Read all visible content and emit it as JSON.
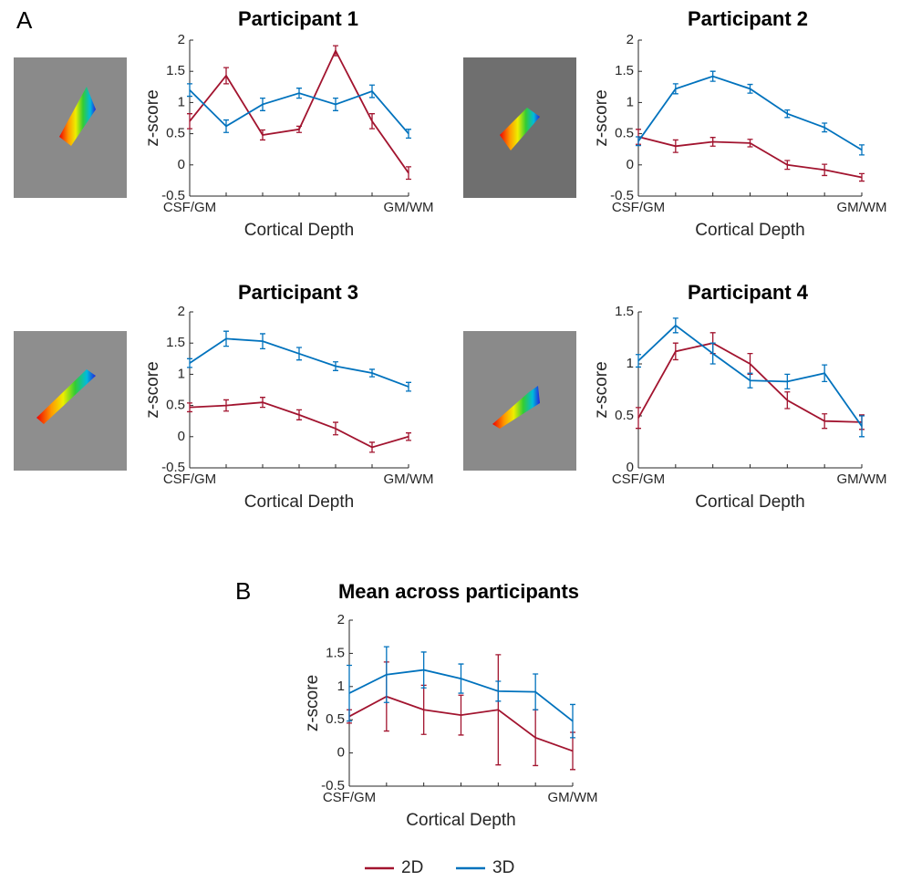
{
  "panel_labels": [
    "A",
    "B"
  ],
  "chart_data": [
    {
      "type": "line",
      "title": "Participant 1",
      "xlabel": "Cortical Depth",
      "ylabel": "z-score",
      "categories": [
        "CSF/GM",
        null,
        null,
        null,
        null,
        null,
        "GM/WM"
      ],
      "ylim": [
        -0.5,
        2
      ],
      "yticks": [
        -0.5,
        0,
        0.5,
        1,
        1.5,
        2
      ],
      "series": [
        {
          "name": "2D",
          "color": "#a2142f",
          "values": [
            0.7,
            1.43,
            0.48,
            0.57,
            1.83,
            0.7,
            -0.13
          ],
          "errors": [
            0.12,
            0.13,
            0.08,
            0.05,
            0.08,
            0.12,
            0.1
          ]
        },
        {
          "name": "3D",
          "color": "#0072bd",
          "values": [
            1.2,
            0.62,
            0.97,
            1.15,
            0.97,
            1.18,
            0.5
          ],
          "errors": [
            0.1,
            0.1,
            0.1,
            0.08,
            0.1,
            0.1,
            0.07
          ]
        }
      ]
    },
    {
      "type": "line",
      "title": "Participant 2",
      "xlabel": "Cortical Depth",
      "ylabel": "z-score",
      "categories": [
        "CSF/GM",
        null,
        null,
        null,
        null,
        null,
        "GM/WM"
      ],
      "ylim": [
        -0.5,
        2
      ],
      "yticks": [
        -0.5,
        0,
        0.5,
        1,
        1.5,
        2
      ],
      "series": [
        {
          "name": "2D",
          "color": "#a2142f",
          "values": [
            0.45,
            0.3,
            0.37,
            0.35,
            0.0,
            -0.08,
            -0.2
          ],
          "errors": [
            0.12,
            0.1,
            0.07,
            0.06,
            0.07,
            0.09,
            0.06
          ]
        },
        {
          "name": "3D",
          "color": "#0072bd",
          "values": [
            0.38,
            1.22,
            1.42,
            1.22,
            0.82,
            0.6,
            0.24
          ],
          "errors": [
            0.07,
            0.08,
            0.08,
            0.07,
            0.06,
            0.07,
            0.08
          ]
        }
      ]
    },
    {
      "type": "line",
      "title": "Participant 3",
      "xlabel": "Cortical Depth",
      "ylabel": "z-score",
      "categories": [
        "CSF/GM",
        null,
        null,
        null,
        null,
        null,
        "GM/WM"
      ],
      "ylim": [
        -0.5,
        2
      ],
      "yticks": [
        -0.5,
        0,
        0.5,
        1,
        1.5,
        2
      ],
      "series": [
        {
          "name": "2D",
          "color": "#a2142f",
          "values": [
            0.47,
            0.5,
            0.55,
            0.35,
            0.13,
            -0.17,
            0.0
          ],
          "errors": [
            0.07,
            0.09,
            0.08,
            0.08,
            0.1,
            0.08,
            0.06
          ]
        },
        {
          "name": "3D",
          "color": "#0072bd",
          "values": [
            1.18,
            1.57,
            1.53,
            1.33,
            1.13,
            1.02,
            0.8
          ],
          "errors": [
            0.07,
            0.12,
            0.12,
            0.1,
            0.07,
            0.06,
            0.07
          ]
        }
      ]
    },
    {
      "type": "line",
      "title": "Participant 4",
      "xlabel": "Cortical Depth",
      "ylabel": "z-score",
      "categories": [
        "CSF/GM",
        null,
        null,
        null,
        null,
        null,
        "GM/WM"
      ],
      "ylim": [
        0,
        1.5
      ],
      "yticks": [
        0,
        0.5,
        1,
        1.5
      ],
      "series": [
        {
          "name": "2D",
          "color": "#a2142f",
          "values": [
            0.48,
            1.12,
            1.2,
            1.0,
            0.65,
            0.45,
            0.44
          ],
          "errors": [
            0.1,
            0.08,
            0.1,
            0.1,
            0.08,
            0.07,
            0.07
          ]
        },
        {
          "name": "3D",
          "color": "#0072bd",
          "values": [
            1.03,
            1.37,
            1.1,
            0.84,
            0.83,
            0.91,
            0.4
          ],
          "errors": [
            0.06,
            0.07,
            0.1,
            0.07,
            0.07,
            0.08,
            0.1
          ]
        }
      ]
    },
    {
      "type": "line",
      "title": "Mean across participants",
      "xlabel": "Cortical Depth",
      "ylabel": "z-score",
      "categories": [
        "CSF/GM",
        null,
        null,
        null,
        null,
        null,
        "GM/WM"
      ],
      "ylim": [
        -0.5,
        2
      ],
      "yticks": [
        -0.5,
        0,
        0.5,
        1,
        1.5,
        2
      ],
      "series": [
        {
          "name": "2D",
          "color": "#a2142f",
          "values": [
            0.55,
            0.85,
            0.65,
            0.57,
            0.65,
            0.23,
            0.03
          ],
          "errors": [
            0.1,
            0.52,
            0.37,
            0.3,
            0.83,
            0.42,
            0.28
          ]
        },
        {
          "name": "3D",
          "color": "#0072bd",
          "values": [
            0.9,
            1.18,
            1.25,
            1.12,
            0.93,
            0.92,
            0.48
          ],
          "errors": [
            0.42,
            0.42,
            0.27,
            0.22,
            0.15,
            0.27,
            0.25
          ]
        }
      ]
    }
  ]
}
